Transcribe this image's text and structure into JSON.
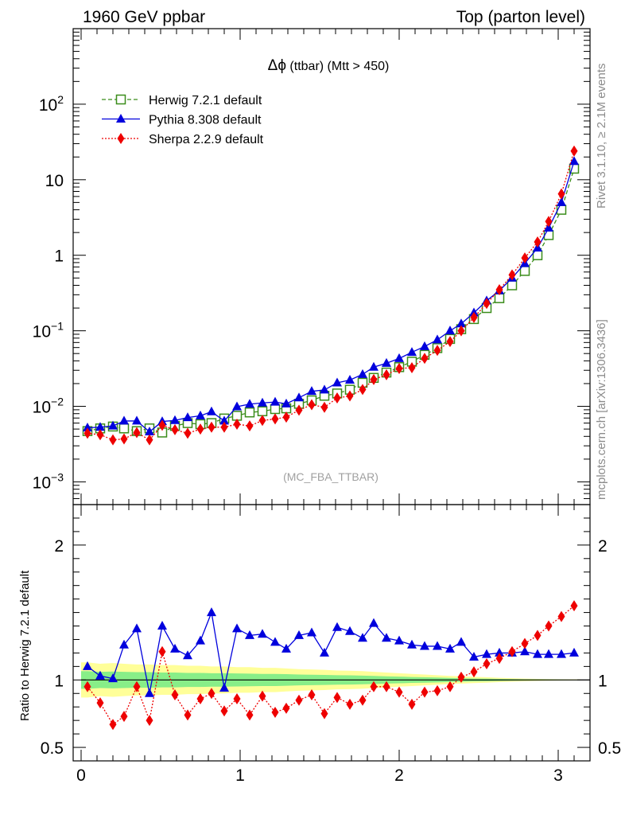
{
  "header": {
    "left": "1960 GeV ppbar",
    "right": "Top (parton level)"
  },
  "side_labels": {
    "rivet": "Rivet 3.1.10, ≥ 2.1M events",
    "mcplots": "mcplots.cern.ch [arXiv:1306.3436]"
  },
  "analysis_tag": "(MC_FBA_TTBAR)",
  "chart_data": [
    {
      "type": "line",
      "panel": "main",
      "title": "Δϕ (ttbar) (Mtt > 450)",
      "title_symbol": "Δϕ",
      "title_rest": " (ttbar) (Mtt > 450)",
      "xlabel": "",
      "ylabel": "",
      "y_scale": "log",
      "xlim": [
        -0.05,
        3.2
      ],
      "ylim": [
        0.0005,
        1000
      ],
      "y_tick_labels": [
        {
          "value": 0.001,
          "base": "10",
          "exp": "−3"
        },
        {
          "value": 0.01,
          "base": "10",
          "exp": "−2"
        },
        {
          "value": 0.1,
          "base": "10",
          "exp": "−1"
        },
        {
          "value": 1,
          "base": "1",
          "exp": ""
        },
        {
          "value": 10,
          "base": "10",
          "exp": ""
        },
        {
          "value": 100,
          "base": "10",
          "exp": "2"
        }
      ],
      "legend_position": "top-left",
      "x": [
        0.04,
        0.12,
        0.2,
        0.27,
        0.35,
        0.43,
        0.51,
        0.59,
        0.67,
        0.75,
        0.82,
        0.9,
        0.98,
        1.06,
        1.14,
        1.22,
        1.29,
        1.37,
        1.45,
        1.53,
        1.61,
        1.69,
        1.77,
        1.84,
        1.92,
        2.0,
        2.08,
        2.16,
        2.24,
        2.32,
        2.39,
        2.47,
        2.55,
        2.63,
        2.71,
        2.79,
        2.87,
        2.94,
        3.02,
        3.1
      ],
      "series": [
        {
          "name": "Herwig 7.2.1 default",
          "color": "#3a8d1a",
          "marker": "open-square",
          "line": "dashed",
          "values": [
            0.0047,
            0.0051,
            0.0054,
            0.0051,
            0.0047,
            0.0051,
            0.0045,
            0.0055,
            0.006,
            0.0058,
            0.006,
            0.0069,
            0.0075,
            0.0083,
            0.0086,
            0.0092,
            0.0094,
            0.0108,
            0.012,
            0.0138,
            0.0148,
            0.0166,
            0.0205,
            0.0238,
            0.028,
            0.033,
            0.039,
            0.048,
            0.059,
            0.078,
            0.105,
            0.143,
            0.2,
            0.27,
            0.4,
            0.62,
            1.0,
            1.85,
            4.0,
            14.0
          ]
        },
        {
          "name": "Pythia 8.308 default",
          "color": "#0000dd",
          "marker": "filled-triangle",
          "line": "solid",
          "values": [
            0.0052,
            0.0053,
            0.0055,
            0.0064,
            0.0064,
            0.0046,
            0.0063,
            0.0065,
            0.0071,
            0.0075,
            0.0085,
            0.0064,
            0.0099,
            0.0107,
            0.0111,
            0.0114,
            0.0108,
            0.013,
            0.0158,
            0.0165,
            0.0205,
            0.0223,
            0.0265,
            0.0331,
            0.0372,
            0.043,
            0.052,
            0.062,
            0.076,
            0.1,
            0.124,
            0.173,
            0.25,
            0.34,
            0.5,
            0.78,
            1.25,
            2.3,
            5.0,
            17.5
          ]
        },
        {
          "name": "Sherpa 2.2.9 default",
          "color": "#ee0000",
          "marker": "filled-diamond",
          "line": "dotted",
          "values": [
            0.0044,
            0.0042,
            0.0036,
            0.0037,
            0.0045,
            0.0036,
            0.0056,
            0.0049,
            0.0044,
            0.005,
            0.0053,
            0.0053,
            0.0058,
            0.0055,
            0.0065,
            0.0068,
            0.0072,
            0.0089,
            0.0105,
            0.0097,
            0.0129,
            0.0137,
            0.0167,
            0.0226,
            0.0262,
            0.0317,
            0.0325,
            0.0432,
            0.055,
            0.072,
            0.1,
            0.15,
            0.23,
            0.35,
            0.55,
            0.92,
            1.5,
            2.8,
            6.5,
            24.0
          ]
        }
      ]
    },
    {
      "type": "line",
      "panel": "ratio",
      "xlabel": "",
      "ylabel": "Ratio to Herwig 7.2.1 default",
      "xlim": [
        -0.05,
        3.2
      ],
      "ylim": [
        0.4,
        2.3
      ],
      "x_ticks": [
        0,
        1,
        2,
        3
      ],
      "x_tick_labels": [
        "0",
        "1",
        "2",
        "3"
      ],
      "y_ticks": [
        0.5,
        1,
        2
      ],
      "y_tick_labels": [
        "0.5",
        "1",
        "2"
      ],
      "x": [
        0.04,
        0.12,
        0.2,
        0.27,
        0.35,
        0.43,
        0.51,
        0.59,
        0.67,
        0.75,
        0.82,
        0.9,
        0.98,
        1.06,
        1.14,
        1.22,
        1.29,
        1.37,
        1.45,
        1.53,
        1.61,
        1.69,
        1.77,
        1.84,
        1.92,
        2.0,
        2.08,
        2.16,
        2.24,
        2.32,
        2.39,
        2.47,
        2.55,
        2.63,
        2.71,
        2.79,
        2.87,
        2.94,
        3.02,
        3.1
      ],
      "bands": [
        {
          "name": "outer",
          "color": "#ffff99",
          "halfwidth": [
            0.13,
            0.12,
            0.125,
            0.12,
            0.115,
            0.115,
            0.11,
            0.11,
            0.105,
            0.105,
            0.1,
            0.1,
            0.095,
            0.095,
            0.09,
            0.09,
            0.085,
            0.08,
            0.078,
            0.075,
            0.07,
            0.068,
            0.065,
            0.06,
            0.055,
            0.05,
            0.045,
            0.04,
            0.035,
            0.03,
            0.027,
            0.023,
            0.02,
            0.016,
            0.013,
            0.01,
            0.008,
            0.006,
            0.005,
            0.004
          ]
        },
        {
          "name": "inner",
          "color": "#88ee88",
          "halfwidth": [
            0.065,
            0.06,
            0.062,
            0.06,
            0.058,
            0.058,
            0.055,
            0.055,
            0.052,
            0.052,
            0.05,
            0.05,
            0.048,
            0.047,
            0.045,
            0.045,
            0.043,
            0.04,
            0.039,
            0.037,
            0.035,
            0.034,
            0.032,
            0.03,
            0.027,
            0.025,
            0.022,
            0.02,
            0.018,
            0.015,
            0.013,
            0.011,
            0.01,
            0.008,
            0.0065,
            0.005,
            0.004,
            0.003,
            0.0025,
            0.002
          ]
        }
      ],
      "series": [
        {
          "name": "Pythia 8.308 default",
          "color": "#0000dd",
          "marker": "filled-triangle",
          "line": "solid",
          "values": [
            1.1,
            1.03,
            1.01,
            1.26,
            1.38,
            0.9,
            1.4,
            1.23,
            1.18,
            1.29,
            1.5,
            0.94,
            1.38,
            1.33,
            1.34,
            1.28,
            1.23,
            1.33,
            1.35,
            1.2,
            1.39,
            1.36,
            1.31,
            1.42,
            1.31,
            1.29,
            1.26,
            1.25,
            1.25,
            1.23,
            1.28,
            1.17,
            1.19,
            1.2,
            1.2,
            1.21,
            1.19,
            1.19,
            1.19,
            1.2
          ]
        },
        {
          "name": "Sherpa 2.2.9 default",
          "color": "#ee0000",
          "marker": "filled-diamond",
          "line": "dotted",
          "values": [
            0.95,
            0.83,
            0.67,
            0.73,
            0.95,
            0.7,
            1.21,
            0.89,
            0.74,
            0.86,
            0.9,
            0.77,
            0.86,
            0.74,
            0.88,
            0.76,
            0.79,
            0.85,
            0.89,
            0.75,
            0.87,
            0.82,
            0.85,
            0.95,
            0.95,
            0.91,
            0.82,
            0.91,
            0.92,
            0.95,
            1.02,
            1.06,
            1.12,
            1.16,
            1.21,
            1.27,
            1.33,
            1.4,
            1.47,
            1.55
          ]
        }
      ]
    }
  ]
}
